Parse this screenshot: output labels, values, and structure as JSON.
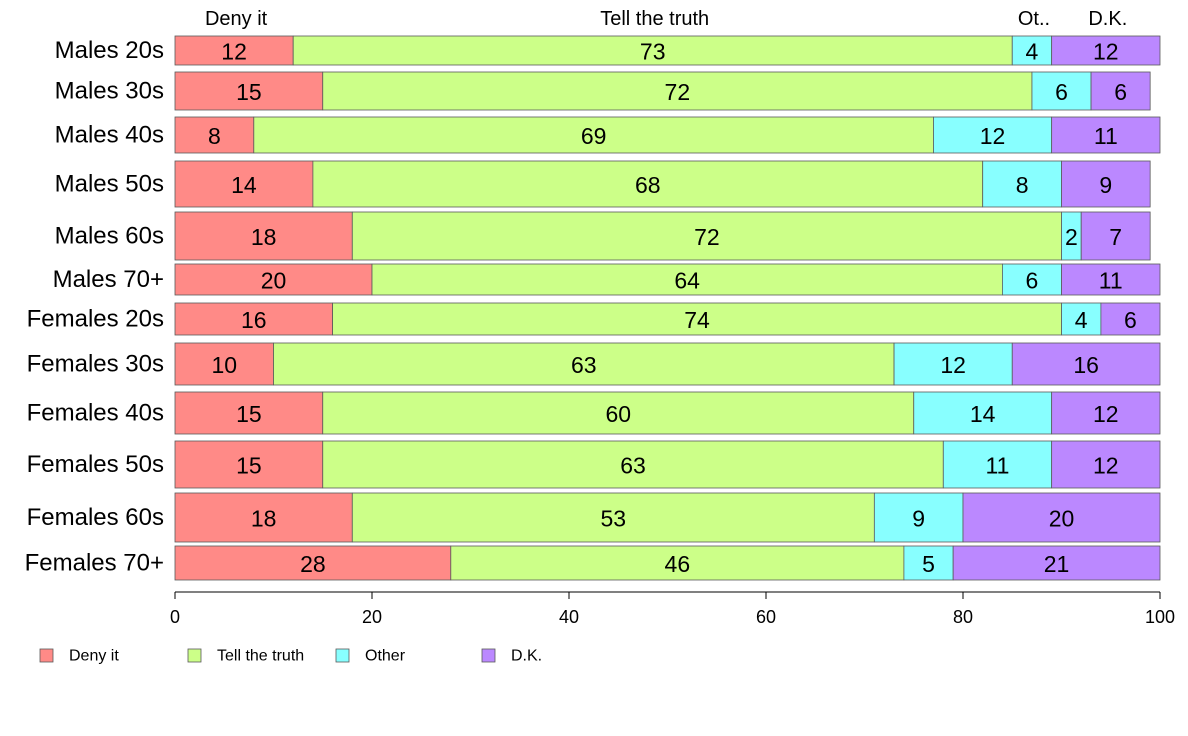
{
  "chart_data": {
    "type": "bar",
    "orientation": "horizontal",
    "stacked": true,
    "categories": [
      "Males 20s",
      "Males 30s",
      "Males 40s",
      "Males 50s",
      "Males 60s",
      "Males 70+",
      "Females 20s",
      "Females 30s",
      "Females 40s",
      "Females 50s",
      "Females 60s",
      "Females 70+"
    ],
    "series": [
      {
        "name": "Deny it",
        "color": "#ff8a87",
        "values": [
          12,
          15,
          8,
          14,
          18,
          20,
          16,
          10,
          15,
          15,
          18,
          28
        ]
      },
      {
        "name": "Tell the truth",
        "color": "#ccff88",
        "values": [
          73,
          72,
          69,
          68,
          72,
          64,
          74,
          63,
          60,
          63,
          53,
          46
        ]
      },
      {
        "name": "Other",
        "color": "#88ffff",
        "values": [
          4,
          6,
          12,
          8,
          2,
          6,
          4,
          12,
          14,
          11,
          9,
          5
        ]
      },
      {
        "name": "D.K.",
        "color": "#bb88ff",
        "values": [
          12,
          6,
          11,
          9,
          7,
          11,
          6,
          16,
          12,
          12,
          20,
          21
        ]
      }
    ],
    "top_labels": [
      "Deny it",
      "Tell the truth",
      "Ot..",
      "D.K."
    ],
    "xlim": [
      0,
      100
    ],
    "xticks": [
      0,
      20,
      40,
      60,
      80,
      100
    ],
    "legend": {
      "position": "bottom",
      "labels": [
        "Deny it",
        "Tell the truth",
        "Other",
        "D.K."
      ]
    },
    "grid": false,
    "title": "",
    "xlabel": "",
    "ylabel": ""
  }
}
